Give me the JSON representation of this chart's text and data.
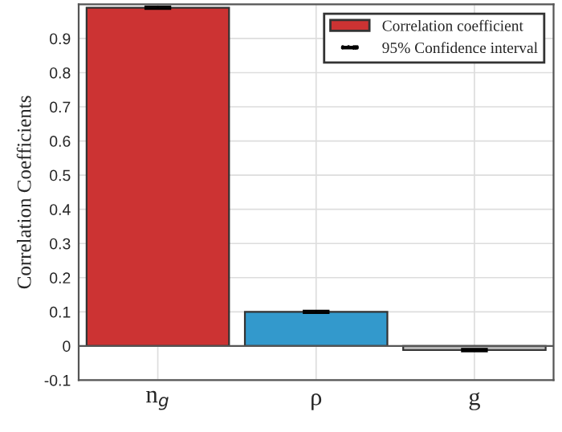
{
  "chart_data": {
    "type": "bar",
    "ylabel": "Correlation Coefficients",
    "categories": [
      "n$_{g}$",
      "ρ",
      "g"
    ],
    "series": [
      {
        "name": "Correlation coefficient",
        "colors": [
          "#cc3333",
          "#3399cc",
          "#b3b3b3"
        ],
        "values": [
          0.99,
          0.1,
          -0.012
        ],
        "errors": [
          0.003,
          0.003,
          0.003
        ]
      }
    ],
    "annotations": [
      "95% Confidence interval"
    ],
    "ylim": [
      -0.1,
      1.0
    ],
    "yticks": [
      -0.1,
      0,
      0.1,
      0.2,
      0.3,
      0.4,
      0.5,
      0.6,
      0.7,
      0.8,
      0.9,
      {
        "value": 1.0,
        "label": null
      }
    ],
    "grid": true,
    "legend": "top right"
  }
}
